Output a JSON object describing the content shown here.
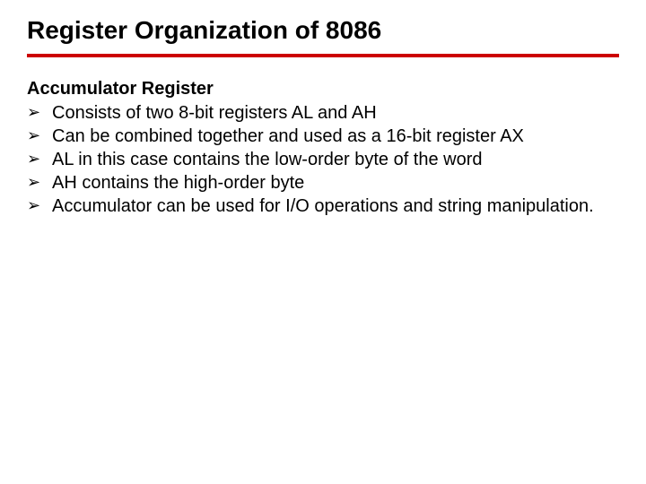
{
  "slide": {
    "title": "Register Organization of 8086",
    "section_heading": "Accumulator Register",
    "bullets": [
      "Consists of two 8-bit registers AL and AH",
      "Can be combined together and used as a 16-bit register AX",
      "AL in this case contains the low-order byte of the word",
      "AH contains the high-order byte",
      "Accumulator can be used for I/O operations and string manipulation."
    ],
    "bullet_marker": "➢",
    "styling": {
      "title_fontsize": 28,
      "title_color": "#000000",
      "underline_color": "#cc0000",
      "underline_thickness": 4,
      "body_fontsize": 20,
      "body_color": "#000000",
      "background_color": "#ffffff",
      "font_family": "Verdana"
    }
  }
}
